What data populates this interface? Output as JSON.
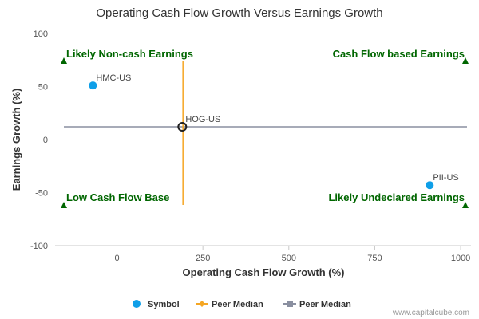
{
  "chart_data": {
    "type": "scatter",
    "title": "Operating Cash Flow Growth Versus Earnings Growth",
    "xlabel": "Operating Cash Flow Growth (%)",
    "ylabel": "Earnings Growth (%)",
    "xlim": [
      -180,
      1030
    ],
    "ylim": [
      -100,
      100
    ],
    "xticks": [
      0,
      250,
      500,
      750,
      1000
    ],
    "yticks": [
      100,
      50,
      0,
      -50,
      -100
    ],
    "grid": false,
    "points": [
      {
        "label": "HMC-US",
        "x": -70,
        "y": 51,
        "color": "#0f9fe8"
      },
      {
        "label": "PII-US",
        "x": 910,
        "y": -43,
        "color": "#0f9fe8"
      },
      {
        "label": "HOG-US",
        "x": 190,
        "y": 12,
        "highlight": true
      }
    ],
    "peer_median_x": 192,
    "peer_median_y": 12,
    "quadrant_labels": {
      "top_left": "Likely Non-cash Earnings",
      "top_right": "Cash Flow based Earnings",
      "bottom_left": "Low Cash Flow Base",
      "bottom_right": "Likely Undeclared Earnings"
    },
    "quadrant_color": "#006600",
    "legend": {
      "placement": "bottom-center",
      "items": [
        {
          "label": "Symbol",
          "marker": "circle",
          "color": "#0f9fe8"
        },
        {
          "label": "Peer Median",
          "marker": "diamond-line",
          "color": "#f5a623"
        },
        {
          "label": "Peer Median",
          "marker": "square-line",
          "color": "#8a8fa0"
        }
      ]
    },
    "credit": "www.capitalcube.com"
  }
}
